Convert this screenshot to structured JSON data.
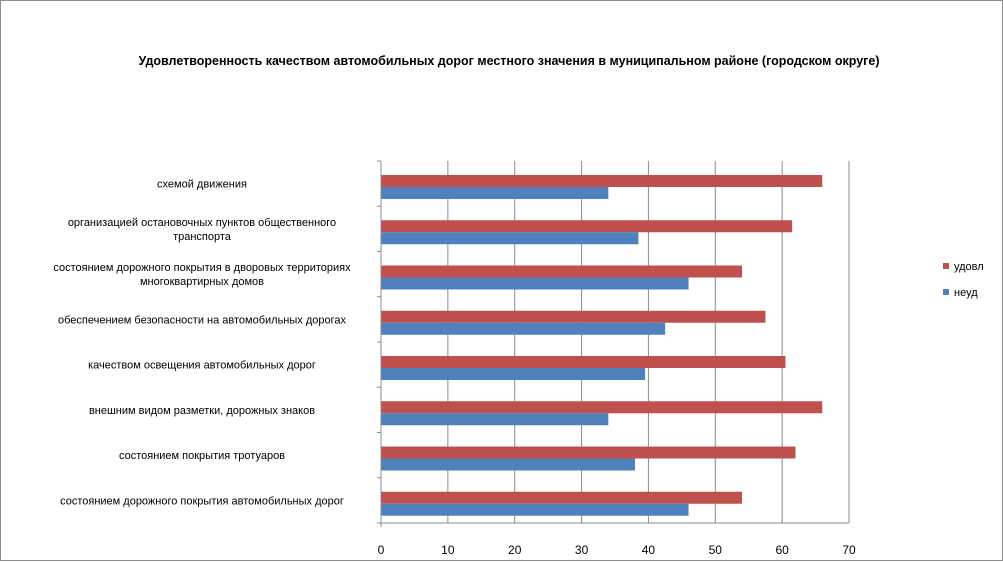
{
  "chart_data": {
    "type": "bar",
    "orientation": "horizontal",
    "title": "Удовлетворенность качеством автомобильных дорог местного значения в муниципальном районе (городском округе)",
    "categories": [
      [
        "схемой движения"
      ],
      [
        "организацией остановочных пунктов общественного",
        "транспорта"
      ],
      [
        "состоянием дорожного покрытия в дворовых территориях",
        "многоквартирных домов"
      ],
      [
        "обеспечением  безопасности на автомобильных дорогах"
      ],
      [
        "качеством освещения  автомобильных дорог"
      ],
      [
        "внешним  видом разметки, дорожных знаков"
      ],
      [
        "состоянием покрытия тротуаров"
      ],
      [
        "состоянием дорожного покрытия автомобильных дорог"
      ]
    ],
    "series": [
      {
        "name": "удовл",
        "color": "#C0504D",
        "values": [
          66,
          61.5,
          54,
          57.5,
          60.5,
          66,
          62,
          54
        ]
      },
      {
        "name": "неуд",
        "color": "#4F81BD",
        "values": [
          34,
          38.5,
          46,
          42.5,
          39.5,
          34,
          38,
          46
        ]
      }
    ],
    "xlim": [
      0,
      70
    ],
    "xticks": [
      0,
      10,
      20,
      30,
      40,
      50,
      60,
      70
    ],
    "grid": "vertical",
    "legend": "right"
  }
}
